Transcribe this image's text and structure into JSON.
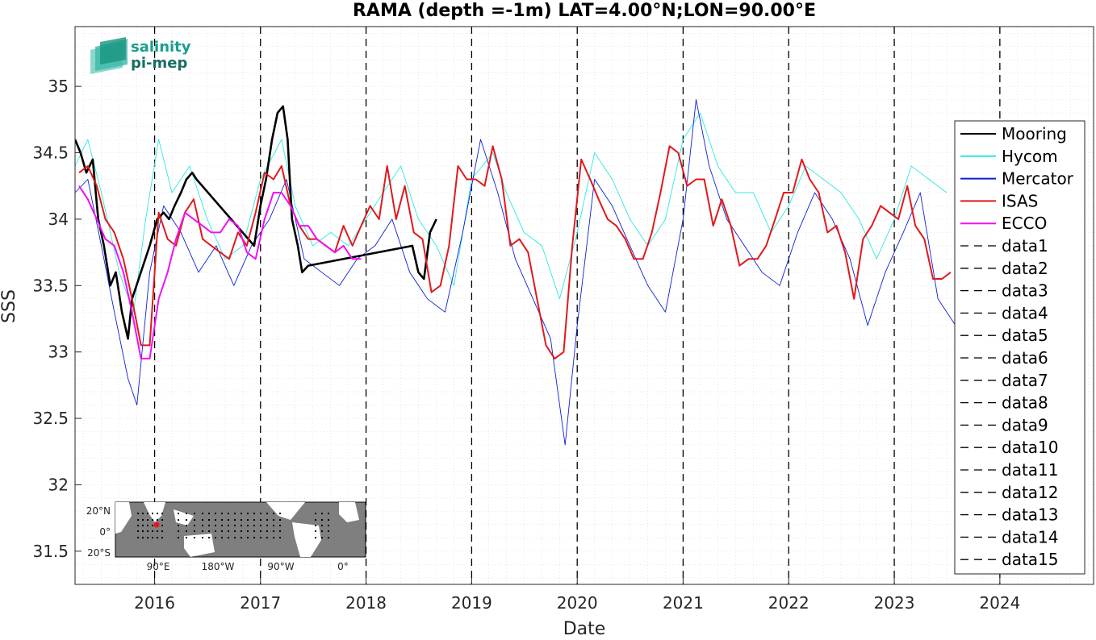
{
  "chart_data": {
    "type": "line",
    "title": "RAMA (depth =-1m) LAT=4.00°N;LON=90.00°E",
    "xlabel": "Date",
    "ylabel": "SSS",
    "xlim": [
      "2015-04-01",
      "2024-11-20"
    ],
    "ylim": [
      31.25,
      35.45
    ],
    "x_ticks": [
      "2016",
      "2017",
      "2018",
      "2019",
      "2020",
      "2021",
      "2022",
      "2023",
      "2024"
    ],
    "y_ticks": [
      "31.5",
      "32",
      "32.5",
      "33",
      "33.5",
      "34",
      "34.5",
      "35"
    ],
    "grid": "on (dotted minor grid)",
    "legend_position": "right",
    "logo": {
      "line1": "salinity",
      "line2": "pi-mep",
      "color": "#1a9e8f"
    },
    "series": [
      {
        "name": "Mooring",
        "color": "#000000",
        "x": [
          "2015-04-01",
          "2015-04-20",
          "2015-05-10",
          "2015-06-01",
          "2015-06-20",
          "2015-07-10",
          "2015-08-01",
          "2015-08-20",
          "2015-09-10",
          "2015-10-01",
          "2015-10-15",
          "2015-12-15",
          "2016-01-10",
          "2016-02-01",
          "2016-02-20",
          "2016-03-10",
          "2016-04-01",
          "2016-04-20",
          "2016-05-10",
          "2016-05-25",
          "2016-12-10",
          "2017-01-01",
          "2017-01-20",
          "2017-02-10",
          "2017-03-01",
          "2017-03-20",
          "2017-04-05",
          "2017-04-20",
          "2017-05-10",
          "2017-05-25",
          "2017-06-15",
          "2018-06-10",
          "2018-07-01",
          "2018-07-20",
          "2018-08-10",
          "2018-09-01"
        ],
        "y": [
          34.6,
          34.5,
          34.35,
          34.45,
          34.0,
          33.8,
          33.5,
          33.6,
          33.3,
          33.1,
          33.4,
          33.8,
          34.0,
          34.05,
          34.0,
          34.1,
          34.2,
          34.3,
          34.35,
          34.3,
          33.8,
          34.1,
          34.3,
          34.6,
          34.8,
          34.85,
          34.6,
          34.0,
          33.8,
          33.6,
          33.65,
          33.8,
          33.6,
          33.55,
          33.9,
          34.0
        ]
      },
      {
        "name": "Hycom",
        "color": "#2ee8e0",
        "x": [
          "2015-04-01",
          "2015-05-15",
          "2015-07-01",
          "2015-09-01",
          "2015-10-20",
          "2015-12-01",
          "2016-01-15",
          "2016-03-01",
          "2016-05-01",
          "2016-07-01",
          "2016-09-01",
          "2016-11-01",
          "2017-01-01",
          "2017-03-15",
          "2017-05-01",
          "2017-07-01",
          "2017-09-01",
          "2017-11-01",
          "2018-01-01",
          "2018-03-01",
          "2018-05-01",
          "2018-07-01",
          "2018-09-01",
          "2018-11-01",
          "2019-01-01",
          "2019-03-15",
          "2019-05-01",
          "2019-07-01",
          "2019-09-01",
          "2019-11-01",
          "2020-01-01",
          "2020-03-01",
          "2020-05-01",
          "2020-07-01",
          "2020-09-01",
          "2020-11-01",
          "2021-01-01",
          "2021-03-01",
          "2021-05-01",
          "2021-07-01",
          "2021-09-01",
          "2021-11-01",
          "2022-01-01",
          "2022-03-01",
          "2022-05-01",
          "2022-07-01",
          "2022-09-01",
          "2022-11-01",
          "2023-01-01",
          "2023-03-01",
          "2023-05-01",
          "2023-07-01"
        ],
        "y": [
          34.4,
          34.6,
          34.2,
          33.6,
          33.3,
          34.0,
          34.6,
          34.2,
          34.4,
          34.0,
          33.7,
          33.8,
          34.3,
          34.6,
          34.1,
          33.8,
          33.9,
          33.8,
          34.0,
          34.2,
          34.4,
          34.0,
          33.8,
          33.5,
          34.3,
          34.5,
          34.2,
          33.9,
          33.8,
          33.4,
          33.9,
          34.5,
          34.3,
          34.0,
          33.8,
          34.0,
          34.6,
          34.8,
          34.4,
          34.2,
          34.2,
          33.9,
          34.1,
          34.4,
          34.3,
          34.2,
          34.0,
          33.7,
          34.0,
          34.4,
          34.3,
          34.2
        ]
      },
      {
        "name": "Mercator",
        "color": "#0d1fd6",
        "x": [
          "2015-04-01",
          "2015-05-15",
          "2015-07-01",
          "2015-08-15",
          "2015-10-01",
          "2015-11-01",
          "2015-12-15",
          "2016-02-01",
          "2016-04-01",
          "2016-06-01",
          "2016-08-01",
          "2016-10-01",
          "2016-12-01",
          "2017-02-01",
          "2017-04-01",
          "2017-06-01",
          "2017-08-01",
          "2017-10-01",
          "2017-12-01",
          "2018-02-01",
          "2018-04-01",
          "2018-06-01",
          "2018-08-01",
          "2018-10-01",
          "2018-12-01",
          "2019-02-01",
          "2019-04-01",
          "2019-06-01",
          "2019-08-01",
          "2019-10-01",
          "2019-11-20",
          "2020-01-01",
          "2020-03-01",
          "2020-05-01",
          "2020-07-01",
          "2020-09-01",
          "2020-11-01",
          "2021-01-01",
          "2021-02-15",
          "2021-04-01",
          "2021-06-01",
          "2021-08-01",
          "2021-10-01",
          "2021-12-01",
          "2022-02-01",
          "2022-04-01",
          "2022-06-01",
          "2022-08-01",
          "2022-10-01",
          "2022-12-01",
          "2023-02-01",
          "2023-04-01",
          "2023-06-01",
          "2023-08-01"
        ],
        "y": [
          34.2,
          34.3,
          33.8,
          33.3,
          32.8,
          32.6,
          33.6,
          34.1,
          33.9,
          33.6,
          33.8,
          33.5,
          33.8,
          34.0,
          34.3,
          33.7,
          33.6,
          33.5,
          33.7,
          33.8,
          34.0,
          33.6,
          33.4,
          33.3,
          33.9,
          34.6,
          34.2,
          33.7,
          33.4,
          33.1,
          32.3,
          33.2,
          34.3,
          34.1,
          33.8,
          33.5,
          33.3,
          34.0,
          34.9,
          34.4,
          34.0,
          33.8,
          33.6,
          33.5,
          33.9,
          34.2,
          34.0,
          33.7,
          33.2,
          33.6,
          33.9,
          34.2,
          33.4,
          33.2
        ]
      },
      {
        "name": "ISAS",
        "color": "#e0191c",
        "x": [
          "2015-04-15",
          "2015-05-15",
          "2015-06-15",
          "2015-07-15",
          "2015-08-15",
          "2015-09-15",
          "2015-10-15",
          "2015-11-15",
          "2015-12-15",
          "2016-01-15",
          "2016-02-15",
          "2016-03-15",
          "2016-04-15",
          "2016-05-15",
          "2016-06-15",
          "2016-07-15",
          "2016-08-15",
          "2016-09-15",
          "2016-10-15",
          "2016-11-15",
          "2016-12-15",
          "2017-01-15",
          "2017-02-15",
          "2017-03-15",
          "2017-04-15",
          "2017-05-15",
          "2017-06-15",
          "2017-07-15",
          "2017-08-15",
          "2017-09-15",
          "2017-10-15",
          "2017-11-15",
          "2017-12-15",
          "2018-01-15",
          "2018-02-15",
          "2018-03-15",
          "2018-04-15",
          "2018-05-15",
          "2018-06-15",
          "2018-07-15",
          "2018-08-15",
          "2018-09-15",
          "2018-10-15",
          "2018-11-15",
          "2018-12-15",
          "2019-01-15",
          "2019-02-15",
          "2019-03-15",
          "2019-04-15",
          "2019-05-15",
          "2019-06-15",
          "2019-07-15",
          "2019-08-15",
          "2019-09-15",
          "2019-10-15",
          "2019-11-15",
          "2019-12-15",
          "2020-01-15",
          "2020-02-15",
          "2020-03-15",
          "2020-04-15",
          "2020-05-15",
          "2020-06-15",
          "2020-07-15",
          "2020-08-15",
          "2020-09-15",
          "2020-10-15",
          "2020-11-15",
          "2020-12-15",
          "2021-01-15",
          "2021-02-15",
          "2021-03-15",
          "2021-04-15",
          "2021-05-15",
          "2021-06-15",
          "2021-07-15",
          "2021-08-15",
          "2021-09-15",
          "2021-10-15",
          "2021-11-15",
          "2021-12-15",
          "2022-01-15",
          "2022-02-15",
          "2022-03-15",
          "2022-04-15",
          "2022-05-15",
          "2022-06-15",
          "2022-07-15",
          "2022-08-15",
          "2022-09-15",
          "2022-10-15",
          "2022-11-15",
          "2022-12-15",
          "2023-01-15",
          "2023-02-15",
          "2023-03-15",
          "2023-04-15",
          "2023-05-15",
          "2023-06-15",
          "2023-07-15"
        ],
        "y": [
          34.35,
          34.4,
          34.25,
          34.0,
          33.9,
          33.7,
          33.4,
          33.05,
          33.05,
          34.05,
          33.85,
          33.8,
          34.05,
          34.15,
          33.85,
          33.8,
          33.75,
          33.7,
          33.9,
          33.8,
          34.05,
          34.35,
          34.3,
          34.4,
          34.1,
          33.95,
          33.85,
          33.85,
          33.8,
          33.75,
          33.95,
          33.8,
          33.95,
          34.1,
          34.0,
          34.4,
          34.0,
          34.25,
          33.9,
          33.85,
          33.45,
          33.5,
          33.8,
          34.4,
          34.3,
          34.3,
          34.25,
          34.55,
          34.3,
          33.8,
          33.85,
          33.75,
          33.4,
          33.05,
          32.95,
          33.0,
          33.8,
          34.45,
          34.3,
          34.15,
          34.0,
          33.95,
          33.85,
          33.7,
          33.7,
          33.9,
          34.2,
          34.55,
          34.5,
          34.25,
          34.3,
          34.3,
          33.95,
          34.15,
          33.95,
          33.65,
          33.7,
          33.7,
          33.8,
          34.0,
          34.2,
          34.2,
          34.45,
          34.3,
          34.2,
          33.9,
          33.95,
          33.75,
          33.4,
          33.85,
          33.95,
          34.1,
          34.05,
          34.0,
          34.25,
          33.95,
          33.85,
          33.55,
          33.55,
          33.6
        ]
      },
      {
        "name": "ECCO",
        "color": "#f20ff2",
        "x": [
          "2015-04-15",
          "2015-05-15",
          "2015-06-15",
          "2015-07-15",
          "2015-08-15",
          "2015-09-15",
          "2015-10-15",
          "2015-11-15",
          "2015-12-15",
          "2016-01-15",
          "2016-02-15",
          "2016-03-15",
          "2016-04-15",
          "2016-05-15",
          "2016-06-15",
          "2016-07-15",
          "2016-08-15",
          "2016-09-15",
          "2016-10-15",
          "2016-11-15",
          "2016-12-15",
          "2017-01-15",
          "2017-02-15",
          "2017-03-15",
          "2017-04-15",
          "2017-05-15",
          "2017-06-15",
          "2017-07-15",
          "2017-08-15",
          "2017-09-15",
          "2017-10-15",
          "2017-11-15",
          "2017-12-15"
        ],
        "y": [
          34.25,
          34.15,
          34.0,
          33.85,
          33.8,
          33.6,
          33.3,
          32.95,
          32.95,
          33.4,
          33.6,
          33.85,
          34.05,
          34.0,
          33.95,
          33.9,
          33.9,
          34.0,
          33.95,
          33.75,
          33.7,
          34.0,
          34.2,
          34.2,
          34.1,
          33.95,
          33.95,
          33.85,
          33.8,
          33.75,
          33.8,
          33.7,
          33.7
        ]
      }
    ],
    "dashed_series": [
      "data1",
      "data2",
      "data3",
      "data4",
      "data5",
      "data6",
      "data7",
      "data8",
      "data9",
      "data10",
      "data11",
      "data12",
      "data13",
      "data14",
      "data15"
    ],
    "vertical_dashed_lines_at": [
      "2016-01-01",
      "2017-01-01",
      "2018-01-01",
      "2019-01-01",
      "2020-01-01",
      "2021-01-01",
      "2022-01-01",
      "2023-01-01",
      "2024-01-01"
    ],
    "inset_map": {
      "y_labels": [
        "20°N",
        "0°",
        "20°S"
      ],
      "x_labels": [
        "90°E",
        "180°W",
        "90°W",
        "0°"
      ]
    }
  }
}
